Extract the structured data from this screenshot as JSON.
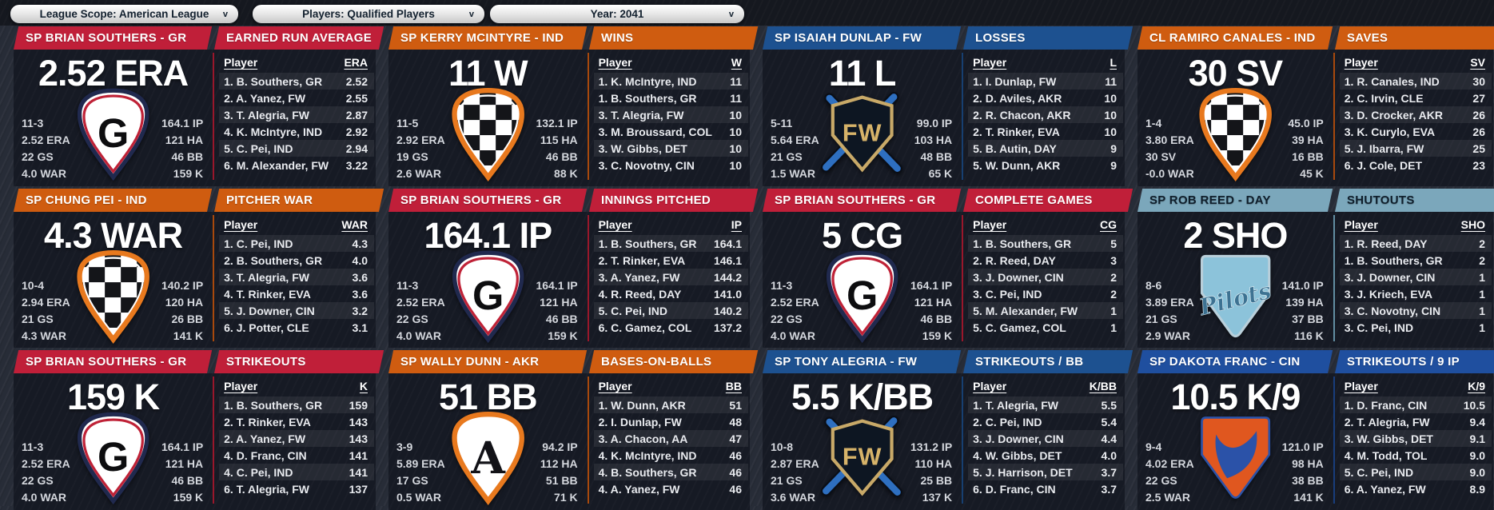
{
  "toolbar": {
    "dropdowns": [
      {
        "label": "League Scope: American League"
      },
      {
        "label": "Players: Qualified Players"
      },
      {
        "label": "Year: 2041"
      }
    ],
    "chevron_glyph": "v"
  },
  "labels": {
    "player_column": "Player"
  },
  "cards": [
    {
      "player_header": "SP BRIAN SOUTHERS - GR",
      "category_header": "EARNED RUN AVERAGE",
      "big_stat": "2.52 ERA",
      "left_stats": [
        "11-3",
        "2.52 ERA",
        "22 GS",
        "4.0 WAR"
      ],
      "right_stats": [
        "164.1 IP",
        "121 HA",
        "46 BB",
        "159 K"
      ],
      "logo": "gr",
      "accent": "#c01f39",
      "accent_dark": "#99172b",
      "header_text": "#ffffff",
      "table": {
        "stat_label": "ERA",
        "rows": [
          [
            "1. B. Southers, GR",
            "2.52"
          ],
          [
            "2. A. Yanez, FW",
            "2.55"
          ],
          [
            "3. T. Alegria, FW",
            "2.87"
          ],
          [
            "4. K. McIntyre, IND",
            "2.92"
          ],
          [
            "5. C. Pei, IND",
            "2.94"
          ],
          [
            "6. M. Alexander, FW",
            "3.22"
          ]
        ]
      }
    },
    {
      "player_header": "SP KERRY MCINTYRE - IND",
      "category_header": "WINS",
      "big_stat": "11 W",
      "left_stats": [
        "11-5",
        "2.92 ERA",
        "19 GS",
        "2.6 WAR"
      ],
      "right_stats": [
        "132.1 IP",
        "115 HA",
        "46 BB",
        "88 K"
      ],
      "logo": "ind",
      "accent": "#cf5c10",
      "accent_dark": "#a8490c",
      "header_text": "#ffffff",
      "table": {
        "stat_label": "W",
        "rows": [
          [
            "1. K. McIntyre, IND",
            "11"
          ],
          [
            "1. B. Southers, GR",
            "11"
          ],
          [
            "3. T. Alegria, FW",
            "10"
          ],
          [
            "3. M. Broussard, COL",
            "10"
          ],
          [
            "3. W. Gibbs, DET",
            "10"
          ],
          [
            "3. C. Novotny, CIN",
            "10"
          ]
        ]
      }
    },
    {
      "player_header": "SP ISAIAH DUNLAP - FW",
      "category_header": "LOSSES",
      "big_stat": "11 L",
      "left_stats": [
        "5-11",
        "5.64 ERA",
        "21 GS",
        "1.5 WAR"
      ],
      "right_stats": [
        "99.0 IP",
        "103 HA",
        "48 BB",
        "65 K"
      ],
      "logo": "fw",
      "accent": "#1d5190",
      "accent_dark": "#173f70",
      "header_text": "#ffffff",
      "table": {
        "stat_label": "L",
        "rows": [
          [
            "1. I. Dunlap, FW",
            "11"
          ],
          [
            "2. D. Aviles, AKR",
            "10"
          ],
          [
            "2. R. Chacon, AKR",
            "10"
          ],
          [
            "2. T. Rinker, EVA",
            "10"
          ],
          [
            "5. B. Autin, DAY",
            "9"
          ],
          [
            "5. W. Dunn, AKR",
            "9"
          ]
        ]
      }
    },
    {
      "player_header": "CL RAMIRO CANALES - IND",
      "category_header": "SAVES",
      "big_stat": "30 SV",
      "left_stats": [
        "1-4",
        "3.80 ERA",
        "30 SV",
        "-0.0 WAR"
      ],
      "right_stats": [
        "45.0 IP",
        "39 HA",
        "16 BB",
        "45 K"
      ],
      "logo": "ind",
      "accent": "#cf5c10",
      "accent_dark": "#a8490c",
      "header_text": "#ffffff",
      "table": {
        "stat_label": "SV",
        "rows": [
          [
            "1. R. Canales, IND",
            "30"
          ],
          [
            "2. C. Irvin, CLE",
            "27"
          ],
          [
            "3. D. Crocker, AKR",
            "26"
          ],
          [
            "3. K. Curylo, EVA",
            "26"
          ],
          [
            "5. J. Ibarra, FW",
            "25"
          ],
          [
            "6. J. Cole, DET",
            "23"
          ]
        ]
      }
    },
    {
      "player_header": "SP CHUNG PEI - IND",
      "category_header": "PITCHER WAR",
      "big_stat": "4.3 WAR",
      "left_stats": [
        "10-4",
        "2.94 ERA",
        "21 GS",
        "4.3 WAR"
      ],
      "right_stats": [
        "140.2 IP",
        "120 HA",
        "26 BB",
        "141 K"
      ],
      "logo": "ind",
      "accent": "#cf5c10",
      "accent_dark": "#a8490c",
      "header_text": "#ffffff",
      "table": {
        "stat_label": "WAR",
        "rows": [
          [
            "1. C. Pei, IND",
            "4.3"
          ],
          [
            "2. B. Southers, GR",
            "4.0"
          ],
          [
            "3. T. Alegria, FW",
            "3.6"
          ],
          [
            "4. T. Rinker, EVA",
            "3.6"
          ],
          [
            "5. J. Downer, CIN",
            "3.2"
          ],
          [
            "6. J. Potter, CLE",
            "3.1"
          ]
        ]
      }
    },
    {
      "player_header": "SP BRIAN SOUTHERS - GR",
      "category_header": "INNINGS PITCHED",
      "big_stat": "164.1 IP",
      "left_stats": [
        "11-3",
        "2.52 ERA",
        "22 GS",
        "4.0 WAR"
      ],
      "right_stats": [
        "164.1 IP",
        "121 HA",
        "46 BB",
        "159 K"
      ],
      "logo": "gr",
      "accent": "#c01f39",
      "accent_dark": "#99172b",
      "header_text": "#ffffff",
      "table": {
        "stat_label": "IP",
        "rows": [
          [
            "1. B. Southers, GR",
            "164.1"
          ],
          [
            "2. T. Rinker, EVA",
            "146.1"
          ],
          [
            "3. A. Yanez, FW",
            "144.2"
          ],
          [
            "4. R. Reed, DAY",
            "141.0"
          ],
          [
            "5. C. Pei, IND",
            "140.2"
          ],
          [
            "6. C. Gamez, COL",
            "137.2"
          ]
        ]
      }
    },
    {
      "player_header": "SP BRIAN SOUTHERS - GR",
      "category_header": "COMPLETE GAMES",
      "big_stat": "5 CG",
      "left_stats": [
        "11-3",
        "2.52 ERA",
        "22 GS",
        "4.0 WAR"
      ],
      "right_stats": [
        "164.1 IP",
        "121 HA",
        "46 BB",
        "159 K"
      ],
      "logo": "gr",
      "accent": "#c01f39",
      "accent_dark": "#99172b",
      "header_text": "#ffffff",
      "table": {
        "stat_label": "CG",
        "rows": [
          [
            "1. B. Southers, GR",
            "5"
          ],
          [
            "2. R. Reed, DAY",
            "3"
          ],
          [
            "3. J. Downer, CIN",
            "2"
          ],
          [
            "3. C. Pei, IND",
            "2"
          ],
          [
            "5. M. Alexander, FW",
            "1"
          ],
          [
            "5. C. Gamez, COL",
            "1"
          ]
        ]
      }
    },
    {
      "player_header": "SP ROB REED - DAY",
      "category_header": "SHUTOUTS",
      "big_stat": "2 SHO",
      "left_stats": [
        "8-6",
        "3.89 ERA",
        "21 GS",
        "2.9 WAR"
      ],
      "right_stats": [
        "141.0 IP",
        "139 HA",
        "37 BB",
        "116 K"
      ],
      "logo": "day",
      "accent": "#7ba7bb",
      "accent_dark": "#628ea2",
      "header_text": "#0f1e2b",
      "table": {
        "stat_label": "SHO",
        "rows": [
          [
            "1. R. Reed, DAY",
            "2"
          ],
          [
            "1. B. Southers, GR",
            "2"
          ],
          [
            "3. J. Downer, CIN",
            "1"
          ],
          [
            "3. J. Kriech, EVA",
            "1"
          ],
          [
            "3. C. Novotny, CIN",
            "1"
          ],
          [
            "3. C. Pei, IND",
            "1"
          ]
        ]
      }
    },
    {
      "player_header": "SP BRIAN SOUTHERS - GR",
      "category_header": "STRIKEOUTS",
      "big_stat": "159 K",
      "left_stats": [
        "11-3",
        "2.52 ERA",
        "22 GS",
        "4.0 WAR"
      ],
      "right_stats": [
        "164.1 IP",
        "121 HA",
        "46 BB",
        "159 K"
      ],
      "logo": "gr",
      "accent": "#c01f39",
      "accent_dark": "#99172b",
      "header_text": "#ffffff",
      "table": {
        "stat_label": "K",
        "rows": [
          [
            "1. B. Southers, GR",
            "159"
          ],
          [
            "2. T. Rinker, EVA",
            "143"
          ],
          [
            "2. A. Yanez, FW",
            "143"
          ],
          [
            "4. D. Franc, CIN",
            "141"
          ],
          [
            "4. C. Pei, IND",
            "141"
          ],
          [
            "6. T. Alegria, FW",
            "137"
          ]
        ]
      }
    },
    {
      "player_header": "SP WALLY DUNN - AKR",
      "category_header": "BASES-ON-BALLS",
      "big_stat": "51 BB",
      "left_stats": [
        "3-9",
        "5.89 ERA",
        "17 GS",
        "0.5 WAR"
      ],
      "right_stats": [
        "94.2 IP",
        "112 HA",
        "51 BB",
        "71 K"
      ],
      "logo": "akr",
      "accent": "#cf5c10",
      "accent_dark": "#a8490c",
      "header_text": "#ffffff",
      "table": {
        "stat_label": "BB",
        "rows": [
          [
            "1. W. Dunn, AKR",
            "51"
          ],
          [
            "2. I. Dunlap, FW",
            "48"
          ],
          [
            "3. A. Chacon, AA",
            "47"
          ],
          [
            "4. K. McIntyre, IND",
            "46"
          ],
          [
            "4. B. Southers, GR",
            "46"
          ],
          [
            "4. A. Yanez, FW",
            "46"
          ]
        ]
      }
    },
    {
      "player_header": "SP TONY ALEGRIA - FW",
      "category_header": "STRIKEOUTS / BB",
      "big_stat": "5.5 K/BB",
      "left_stats": [
        "10-8",
        "2.87 ERA",
        "21 GS",
        "3.6 WAR"
      ],
      "right_stats": [
        "131.2 IP",
        "110 HA",
        "25 BB",
        "137 K"
      ],
      "logo": "fw",
      "accent": "#1d5190",
      "accent_dark": "#173f70",
      "header_text": "#ffffff",
      "table": {
        "stat_label": "K/BB",
        "rows": [
          [
            "1. T. Alegria, FW",
            "5.5"
          ],
          [
            "2. C. Pei, IND",
            "5.4"
          ],
          [
            "3. J. Downer, CIN",
            "4.4"
          ],
          [
            "4. W. Gibbs, DET",
            "4.0"
          ],
          [
            "5. J. Harrison, DET",
            "3.7"
          ],
          [
            "6. D. Franc, CIN",
            "3.7"
          ]
        ]
      }
    },
    {
      "player_header": "SP DAKOTA FRANC - CIN",
      "category_header": "STRIKEOUTS / 9 IP",
      "big_stat": "10.5 K/9",
      "left_stats": [
        "9-4",
        "4.02 ERA",
        "22 GS",
        "2.5 WAR"
      ],
      "right_stats": [
        "121.0 IP",
        "98 HA",
        "38 BB",
        "141 K"
      ],
      "logo": "cin",
      "accent": "#1f4f9f",
      "accent_dark": "#183d7c",
      "header_text": "#ffffff",
      "table": {
        "stat_label": "K/9",
        "rows": [
          [
            "1. D. Franc, CIN",
            "10.5"
          ],
          [
            "2. T. Alegria, FW",
            "9.4"
          ],
          [
            "3. W. Gibbs, DET",
            "9.1"
          ],
          [
            "4. M. Todd, TOL",
            "9.0"
          ],
          [
            "5. C. Pei, IND",
            "9.0"
          ],
          [
            "6. A. Yanez, FW",
            "8.9"
          ]
        ]
      }
    }
  ]
}
